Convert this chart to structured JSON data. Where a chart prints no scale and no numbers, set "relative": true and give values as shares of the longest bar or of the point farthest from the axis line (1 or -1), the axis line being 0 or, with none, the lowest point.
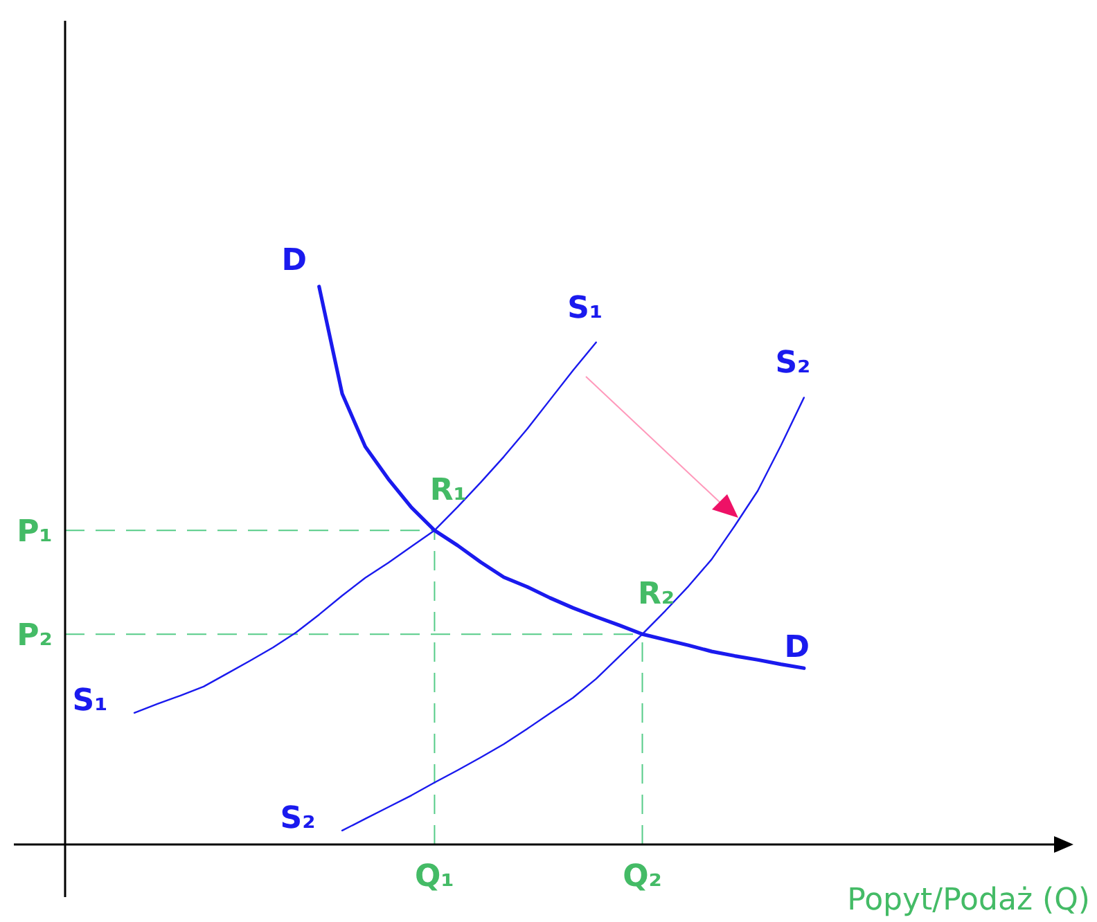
{
  "chart_data": {
    "type": "line",
    "relative": true,
    "xlabel": "Popyt/Podaż (Q)",
    "categories": [
      null,
      null,
      null,
      null,
      null,
      null,
      null,
      null,
      null,
      null,
      null,
      null,
      null,
      null,
      null,
      null,
      "Q₁",
      null,
      null,
      null,
      null,
      null,
      null,
      null,
      null,
      "Q₂",
      null,
      null,
      null,
      null,
      null,
      null,
      null,
      null
    ],
    "series": [
      {
        "name": "D",
        "color": "#1a1aee",
        "values": [
          null,
          null,
          null,
          null,
          null,
          null,
          null,
          null,
          null,
          null,
          null,
          1.0,
          0.808,
          0.713,
          0.655,
          0.604,
          0.563,
          0.536,
          0.506,
          0.479,
          0.462,
          0.442,
          0.424,
          0.408,
          0.393,
          0.377,
          0.367,
          0.357,
          0.346,
          0.338,
          0.331,
          0.323,
          0.316,
          null
        ]
      },
      {
        "name": "S₁",
        "color": "#1a1aee",
        "values": [
          null,
          null,
          null,
          0.236,
          0.252,
          0.267,
          0.283,
          0.306,
          0.329,
          0.353,
          0.38,
          0.412,
          0.446,
          0.478,
          0.505,
          0.534,
          0.563,
          0.605,
          0.649,
          0.695,
          0.744,
          0.797,
          0.85,
          0.9,
          null,
          null,
          null,
          null,
          null,
          null,
          null,
          null,
          null,
          null
        ]
      },
      {
        "name": "S₂",
        "color": "#1a1aee",
        "values": [
          null,
          null,
          null,
          null,
          null,
          null,
          null,
          null,
          null,
          null,
          null,
          null,
          0.025,
          0.046,
          0.067,
          0.088,
          0.111,
          0.133,
          0.156,
          0.18,
          0.207,
          0.235,
          0.263,
          0.297,
          0.337,
          0.377,
          0.419,
          0.463,
          0.511,
          0.571,
          0.634,
          0.715,
          0.801,
          null
        ]
      }
    ],
    "ref_lines": [
      {
        "axis": "y",
        "value": 0.563,
        "label": "P₁",
        "color": "#55cc88",
        "line_style": "dashed"
      },
      {
        "axis": "y",
        "value": 0.377,
        "label": "P₂",
        "color": "#55cc88",
        "line_style": "dashed"
      },
      {
        "axis": "x",
        "value": "Q₁",
        "color": "#55cc88",
        "line_style": "dashed"
      },
      {
        "axis": "x",
        "value": "Q₂",
        "color": "#55cc88",
        "line_style": "dashed"
      }
    ],
    "annotations": [
      {
        "text": "R₁",
        "x": "Q₁",
        "y": 0.563
      },
      {
        "text": "R₂",
        "x": "Q₂",
        "y": 0.377
      }
    ]
  }
}
